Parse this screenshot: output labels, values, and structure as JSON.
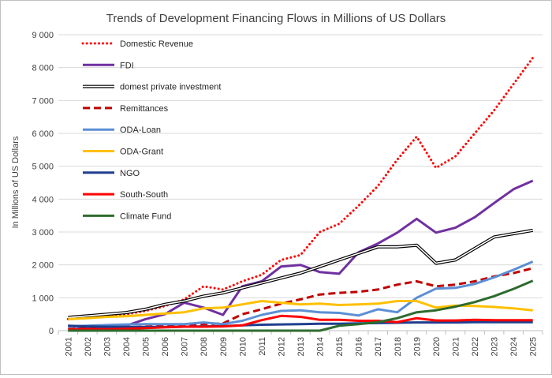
{
  "chart_data": {
    "type": "line",
    "title": "Trends of Development Financing Flows in Millions of US Dollars",
    "xlabel": "",
    "ylabel": "In Millions of US Dollars",
    "ylim": [
      0,
      9000
    ],
    "yticks": [
      0,
      1000,
      2000,
      3000,
      4000,
      5000,
      6000,
      7000,
      8000,
      9000
    ],
    "ytick_labels": [
      "0",
      "1 000",
      "2 000",
      "3 000",
      "4 000",
      "5 000",
      "6 000",
      "7 000",
      "8 000",
      "9 000"
    ],
    "grid": "horizontal",
    "legend_position": "top-left",
    "categories": [
      "2001",
      "2002",
      "2003",
      "2004",
      "2005",
      "2006",
      "2007",
      "2008",
      "2009",
      "2010",
      "2011",
      "2012",
      "2013",
      "2014",
      "2015",
      "2016",
      "2017",
      "2018",
      "2019",
      "2020",
      "2021",
      "2022",
      "2023",
      "2024",
      "2025"
    ],
    "series": [
      {
        "name": "Domestic Revenue",
        "color": "#ff0000",
        "style": "dotted",
        "values": [
          350,
          400,
          450,
          500,
          600,
          750,
          950,
          1350,
          1250,
          1500,
          1700,
          2150,
          2300,
          3000,
          3250,
          3800,
          4400,
          5200,
          5900,
          4950,
          5300,
          6000,
          6700,
          7500,
          8300
        ]
      },
      {
        "name": "FDI",
        "color": "#7030a0",
        "style": "solid",
        "values": [
          150,
          80,
          100,
          150,
          350,
          500,
          850,
          700,
          480,
          1350,
          1500,
          1950,
          2000,
          1780,
          1730,
          2380,
          2650,
          2980,
          3400,
          2980,
          3130,
          3450,
          3880,
          4300,
          4560
        ]
      },
      {
        "name": "domest private investment",
        "color": "#000000",
        "style": "double",
        "values": [
          400,
          450,
          500,
          550,
          650,
          800,
          900,
          1050,
          1150,
          1300,
          1450,
          1600,
          1750,
          1950,
          2150,
          2350,
          2550,
          2550,
          2600,
          2050,
          2150,
          2500,
          2850,
          2950,
          3050
        ]
      },
      {
        "name": "Remittances",
        "color": "#c00000",
        "style": "dashed",
        "values": [
          50,
          60,
          80,
          100,
          120,
          150,
          170,
          200,
          220,
          500,
          650,
          820,
          950,
          1100,
          1150,
          1180,
          1250,
          1400,
          1500,
          1350,
          1400,
          1500,
          1650,
          1750,
          1900
        ]
      },
      {
        "name": "ODA-Loan",
        "color": "#5b8fd4",
        "style": "solid",
        "values": [
          130,
          150,
          170,
          190,
          200,
          200,
          200,
          250,
          200,
          300,
          480,
          600,
          620,
          560,
          540,
          460,
          650,
          560,
          1000,
          1280,
          1300,
          1420,
          1620,
          1850,
          2100
        ]
      },
      {
        "name": "ODA-Grant",
        "color": "#ffc000",
        "style": "solid",
        "values": [
          350,
          380,
          420,
          440,
          480,
          520,
          560,
          680,
          700,
          800,
          900,
          850,
          800,
          820,
          780,
          800,
          820,
          900,
          900,
          700,
          760,
          750,
          720,
          680,
          620
        ]
      },
      {
        "name": "NGO",
        "color": "#1f3f8f",
        "style": "solid",
        "values": [
          150,
          130,
          120,
          110,
          110,
          110,
          120,
          130,
          140,
          160,
          180,
          190,
          200,
          210,
          210,
          220,
          230,
          240,
          250,
          250,
          250,
          260,
          260,
          260,
          260
        ]
      },
      {
        "name": "South-South",
        "color": "#ff0000",
        "style": "solid",
        "values": [
          30,
          40,
          40,
          60,
          80,
          100,
          120,
          120,
          130,
          160,
          320,
          450,
          420,
          330,
          330,
          300,
          300,
          260,
          380,
          310,
          310,
          330,
          320,
          320,
          320
        ]
      },
      {
        "name": "Climate Fund",
        "color": "#2e6b2e",
        "style": "solid",
        "values": [
          0,
          0,
          0,
          0,
          0,
          0,
          0,
          0,
          0,
          0,
          0,
          0,
          0,
          0,
          150,
          200,
          260,
          380,
          560,
          620,
          730,
          870,
          1050,
          1270,
          1520
        ]
      }
    ]
  }
}
